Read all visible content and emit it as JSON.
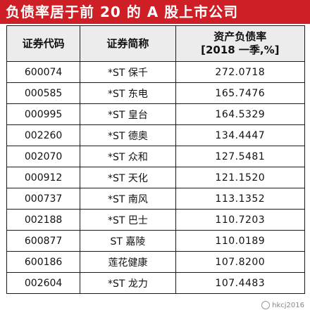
{
  "title": "负债率居于前 20 的 A 股上市公司",
  "table": {
    "headers": {
      "code": "证券代码",
      "name": "证券简称",
      "ratio_line1": "资产负债率",
      "ratio_line2": "[2018 一季,%]"
    },
    "rows": [
      {
        "code": "600074",
        "name": "*ST 保千",
        "ratio": "272.0718"
      },
      {
        "code": "000585",
        "name": "*ST 东电",
        "ratio": "165.7476"
      },
      {
        "code": "000995",
        "name": "*ST 皇台",
        "ratio": "164.5329"
      },
      {
        "code": "002260",
        "name": "*ST 德奥",
        "ratio": "134.4447"
      },
      {
        "code": "002070",
        "name": "*ST 众和",
        "ratio": "127.5481"
      },
      {
        "code": "000912",
        "name": "*ST 天化",
        "ratio": "121.1520"
      },
      {
        "code": "000737",
        "name": "*ST 南风",
        "ratio": "113.1352"
      },
      {
        "code": "002188",
        "name": "*ST 巴士",
        "ratio": "110.7203"
      },
      {
        "code": "600877",
        "name": "ST 嘉陵",
        "ratio": "110.0189"
      },
      {
        "code": "600186",
        "name": "莲花健康",
        "ratio": "107.8200"
      },
      {
        "code": "002604",
        "name": "*ST 龙力",
        "ratio": "107.4483"
      }
    ]
  },
  "watermark": "hkcj2016",
  "colors": {
    "title_bg": "#cf1f26",
    "title_text": "#ffffff",
    "header_bg": "#ececec",
    "border": "#1a1a1a"
  }
}
